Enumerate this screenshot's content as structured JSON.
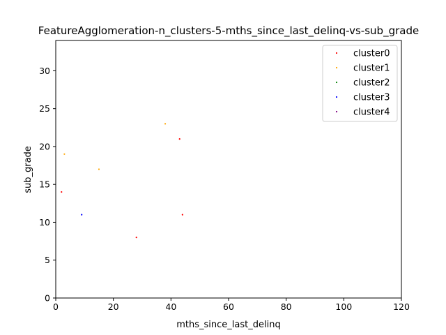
{
  "chart_data": {
    "type": "scatter",
    "title": "FeatureAgglomeration-n_clusters-5-mths_since_last_delinq-vs-sub_grade",
    "xlabel": "mths_since_last_delinq",
    "ylabel": "sub_grade",
    "xlim": [
      0,
      120
    ],
    "ylim": [
      0,
      34
    ],
    "xticks": [
      0,
      20,
      40,
      60,
      80,
      100,
      120
    ],
    "yticks": [
      0,
      5,
      10,
      15,
      20,
      25,
      30
    ],
    "grid": false,
    "legend_position": "top-right",
    "series": [
      {
        "name": "cluster0",
        "color": "#ff0000",
        "points": [
          [
            2,
            14
          ],
          [
            28,
            8
          ],
          [
            43,
            21
          ],
          [
            44,
            11
          ]
        ]
      },
      {
        "name": "cluster1",
        "color": "#ffa500",
        "points": [
          [
            3,
            19
          ],
          [
            15,
            17
          ],
          [
            38,
            23
          ]
        ]
      },
      {
        "name": "cluster2",
        "color": "#008000",
        "points": []
      },
      {
        "name": "cluster3",
        "color": "#0000ff",
        "points": [
          [
            9,
            11
          ]
        ]
      },
      {
        "name": "cluster4",
        "color": "#800080",
        "points": []
      }
    ]
  }
}
